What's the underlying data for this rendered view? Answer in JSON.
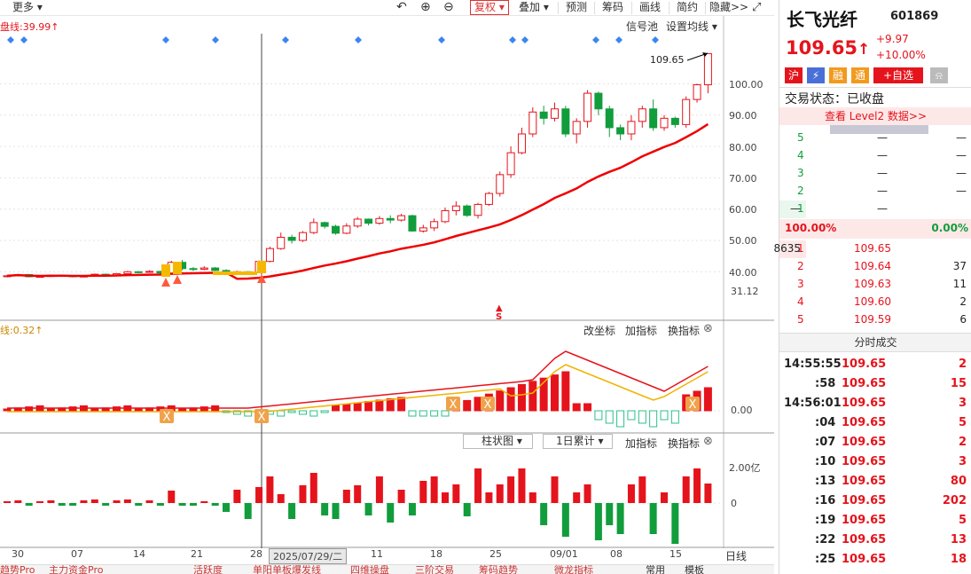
{
  "toolbar": {
    "more": "更多",
    "fuquan": "复权",
    "diejia": "叠加",
    "yuce": "预测",
    "chouma": "筹码",
    "huaxian": "画线",
    "jianyue": "简约",
    "yincang": "隐藏>>"
  },
  "main_chart": {
    "indicator": "盘线:39.99↑",
    "signal_pool": "信号池",
    "set_ma": "设置均线",
    "price_marker": "109.65",
    "y_ticks": [
      "100.00",
      "90.00",
      "80.00",
      "70.00",
      "60.00",
      "50.00",
      "40.00"
    ],
    "y_low": "31.12",
    "s_marker": "S"
  },
  "macd_panel": {
    "label": "线:0.32↑",
    "change_coord": "改坐标",
    "add_indicator": "加指标",
    "switch_indicator": "换指标",
    "zero": "0.00"
  },
  "vol_panel": {
    "chart_type": "柱状图",
    "period": "1日累计",
    "add_indicator": "加指标",
    "switch_indicator": "换指标",
    "y_top": "2.00亿",
    "y_zero": "0"
  },
  "x_axis": {
    "labels": [
      "30",
      "07",
      "14",
      "21",
      "28",
      "11",
      "18",
      "25",
      "09/01",
      "08",
      "15"
    ],
    "cursor_date": "2025/07/29/二",
    "period": "日线"
  },
  "bottom_tabs": [
    "趋势Pro",
    "主力资金Pro",
    "活跃度",
    "单阳单板爆发线",
    "四维操盘",
    "三阶交易",
    "筹码趋势",
    "微龙指标",
    "常用",
    "模板"
  ],
  "stock": {
    "name": "长飞光纤",
    "code": "601869",
    "price": "109.65",
    "arrow": "↑",
    "change": "+9.97",
    "change_pct": "+10.00%",
    "tags": [
      "沪",
      "⚡",
      "融",
      "通",
      "+自选"
    ],
    "status": "交易状态：已收盘",
    "level2": "查看 Level2 数据>>"
  },
  "sell_orders": [
    {
      "level": "5",
      "price": "—",
      "vol": "—"
    },
    {
      "level": "4",
      "price": "—",
      "vol": "—"
    },
    {
      "level": "3",
      "price": "—",
      "vol": "—"
    },
    {
      "level": "2",
      "price": "—",
      "vol": "—"
    },
    {
      "level": "1",
      "price": "—",
      "vol": "—"
    }
  ],
  "ratio": {
    "buy": "100.00%",
    "sell": "0.00%"
  },
  "buy_orders": [
    {
      "level": "1",
      "price": "109.65",
      "vol": "8635"
    },
    {
      "level": "2",
      "price": "109.64",
      "vol": "37"
    },
    {
      "level": "3",
      "price": "109.63",
      "vol": "11"
    },
    {
      "level": "4",
      "price": "109.60",
      "vol": "2"
    },
    {
      "level": "5",
      "price": "109.59",
      "vol": "6"
    }
  ],
  "ticks_title": "分时成交",
  "ticks": [
    {
      "time": "14:55:55",
      "price": "109.65",
      "vol": "2"
    },
    {
      "time": ":58",
      "price": "109.65",
      "vol": "15"
    },
    {
      "time": "14:56:01",
      "price": "109.65",
      "vol": "3"
    },
    {
      "time": ":04",
      "price": "109.65",
      "vol": "5"
    },
    {
      "time": ":07",
      "price": "109.65",
      "vol": "2"
    },
    {
      "time": ":10",
      "price": "109.65",
      "vol": "3"
    },
    {
      "time": ":13",
      "price": "109.65",
      "vol": "80"
    },
    {
      "time": ":16",
      "price": "109.65",
      "vol": "202"
    },
    {
      "time": ":19",
      "price": "109.65",
      "vol": "5"
    },
    {
      "time": ":22",
      "price": "109.65",
      "vol": "13"
    },
    {
      "time": ":25",
      "price": "109.65",
      "vol": "18"
    }
  ],
  "chart_data": {
    "type": "candlestick",
    "unit": "元",
    "candles": [
      [
        38.5,
        38.7,
        38.2,
        38.9
      ],
      [
        38.7,
        39.1,
        38.5,
        39.3
      ],
      [
        39.1,
        38.4,
        38.2,
        39.3
      ],
      [
        38.4,
        38.5,
        38.1,
        38.8
      ],
      [
        38.5,
        38.9,
        38.3,
        39.1
      ],
      [
        38.9,
        38.8,
        38.6,
        39.1
      ],
      [
        38.8,
        38.4,
        38.2,
        38.9
      ],
      [
        38.4,
        38.6,
        38.2,
        38.9
      ],
      [
        38.6,
        39.2,
        38.5,
        39.4
      ],
      [
        39.2,
        38.9,
        38.7,
        39.4
      ],
      [
        38.9,
        39.4,
        38.8,
        39.6
      ],
      [
        39.4,
        40.0,
        39.2,
        40.3
      ],
      [
        40.0,
        39.9,
        39.5,
        40.2
      ],
      [
        39.9,
        40.1,
        39.7,
        40.5
      ],
      [
        40.1,
        39.6,
        39.4,
        40.3
      ],
      [
        39.6,
        43.0,
        39.5,
        43.5
      ],
      [
        43.0,
        41.0,
        40.5,
        43.8
      ],
      [
        41.0,
        40.8,
        40.2,
        41.5
      ],
      [
        40.8,
        41.2,
        40.5,
        41.8
      ],
      [
        41.2,
        40.4,
        40.2,
        41.5
      ],
      [
        40.4,
        39.9,
        39.8,
        40.8
      ],
      [
        39.9,
        40.0,
        39.7,
        40.3
      ],
      [
        40.0,
        39.8,
        39.5,
        40.2
      ],
      [
        39.8,
        43.3,
        39.7,
        43.6
      ],
      [
        43.3,
        47.4,
        43.0,
        48.0
      ],
      [
        47.4,
        51.0,
        47.0,
        52.5
      ],
      [
        51.0,
        50.0,
        49.0,
        51.8
      ],
      [
        50.0,
        52.5,
        49.5,
        53.0
      ],
      [
        52.5,
        55.7,
        52.0,
        57.0
      ],
      [
        55.7,
        54.5,
        53.8,
        56.0
      ],
      [
        54.5,
        52.3,
        51.8,
        55.0
      ],
      [
        52.3,
        54.6,
        52.0,
        55.5
      ],
      [
        54.6,
        56.8,
        54.0,
        57.5
      ],
      [
        56.8,
        55.5,
        54.8,
        57.0
      ],
      [
        55.5,
        57.0,
        55.0,
        57.8
      ],
      [
        57.0,
        56.5,
        55.5,
        58.0
      ],
      [
        56.5,
        57.9,
        56.0,
        58.5
      ],
      [
        57.9,
        53.0,
        52.8,
        58.2
      ],
      [
        53.0,
        54.0,
        52.5,
        55.0
      ],
      [
        54.0,
        56.0,
        53.0,
        57.0
      ],
      [
        56.0,
        59.5,
        55.5,
        60.5
      ],
      [
        59.5,
        61.0,
        58.0,
        62.5
      ],
      [
        61.0,
        58.0,
        57.5,
        61.5
      ],
      [
        58.0,
        61.5,
        57.0,
        62.0
      ],
      [
        61.5,
        65.0,
        61.0,
        65.5
      ],
      [
        65.0,
        71.0,
        64.0,
        72.0
      ],
      [
        71.0,
        78.0,
        70.0,
        80.0
      ],
      [
        78.0,
        84.0,
        77.5,
        86.0
      ],
      [
        84.0,
        91.0,
        83.0,
        92.5
      ],
      [
        91.0,
        89.0,
        87.0,
        93.0
      ],
      [
        89.0,
        92.0,
        88.0,
        94.0
      ],
      [
        92.0,
        84.0,
        83.0,
        93.0
      ],
      [
        84.0,
        88.0,
        81.0,
        89.0
      ],
      [
        88.0,
        97.0,
        86.0,
        98.0
      ],
      [
        97.0,
        92.0,
        90.0,
        97.5
      ],
      [
        92.0,
        86.0,
        83.0,
        93.0
      ],
      [
        86.0,
        84.0,
        82.0,
        87.0
      ],
      [
        84.0,
        88.0,
        82.0,
        90.0
      ],
      [
        88.0,
        92.0,
        86.0,
        93.0
      ],
      [
        92.0,
        86.0,
        85.0,
        95.0
      ],
      [
        86.0,
        89.0,
        85.0,
        90.0
      ],
      [
        89.0,
        87.0,
        86.0,
        89.5
      ],
      [
        87.0,
        95.0,
        86.0,
        96.0
      ],
      [
        95.0,
        99.7,
        94.0,
        100.0
      ],
      [
        99.7,
        109.65,
        97.0,
        109.65
      ]
    ]
  }
}
